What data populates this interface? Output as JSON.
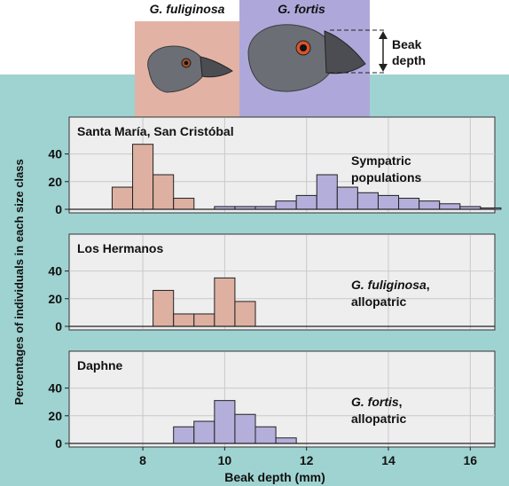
{
  "colors": {
    "teal_background": "#9fd3d1",
    "panel_background": "#eeeeef",
    "fuliginosa_fill": "#ddb0a1",
    "fortis_fill": "#b4aedb",
    "fuliginosa_box": "#e2b3a4",
    "fortis_box": "#aea8da",
    "bar_outline": "#222222",
    "bird_grey": "#6b6f75",
    "beak_grey": "#4b4d52"
  },
  "header": {
    "fuliginosa_label": "G. fuliginosa",
    "fortis_label": "G. fortis",
    "beak_depth_label_line1": "Beak",
    "beak_depth_label_line2": "depth"
  },
  "chart_data": {
    "type": "histogram",
    "xlabel": "Beak depth (mm)",
    "ylabel": "Percentages of individuals in each size class",
    "xlim": [
      6.2,
      16.6
    ],
    "xticks": [
      8,
      10,
      12,
      14,
      16
    ],
    "ylim": [
      0,
      50
    ],
    "yticks": [
      0,
      20,
      40
    ],
    "bin_width": 0.5,
    "grid": true,
    "panels": [
      {
        "title": "Santa María, San Cristóbal",
        "annotation": [
          "Sympatric",
          "populations"
        ],
        "series": [
          {
            "species": "fuliginosa",
            "x_start": [
              7.25,
              7.75,
              8.25,
              8.75
            ],
            "values": [
              16,
              47,
              25,
              8
            ]
          },
          {
            "species": "fortis",
            "x_start": [
              9.75,
              10.25,
              10.75,
              11.25,
              11.75,
              12.25,
              12.75,
              13.25,
              13.75,
              14.25,
              14.75,
              15.25,
              15.75,
              16.25
            ],
            "values": [
              2,
              2,
              2,
              6,
              10,
              25,
              16,
              12,
              10,
              8,
              6,
              4,
              2,
              1
            ]
          }
        ]
      },
      {
        "title": "Los Hermanos",
        "annotation_italic": "G. fuliginosa",
        "annotation_suffix": ",",
        "annotation_line2": "allopatric",
        "series": [
          {
            "species": "fuliginosa",
            "x_start": [
              8.25,
              8.75,
              9.25,
              9.75,
              10.25
            ],
            "values": [
              26,
              9,
              9,
              35,
              18
            ]
          }
        ]
      },
      {
        "title": "Daphne",
        "annotation_italic": "G. fortis",
        "annotation_suffix": ",",
        "annotation_line2": "allopatric",
        "series": [
          {
            "species": "fortis",
            "x_start": [
              8.75,
              9.25,
              9.75,
              10.25,
              10.75,
              11.25
            ],
            "values": [
              12,
              16,
              31,
              21,
              12,
              4
            ]
          }
        ]
      }
    ]
  }
}
